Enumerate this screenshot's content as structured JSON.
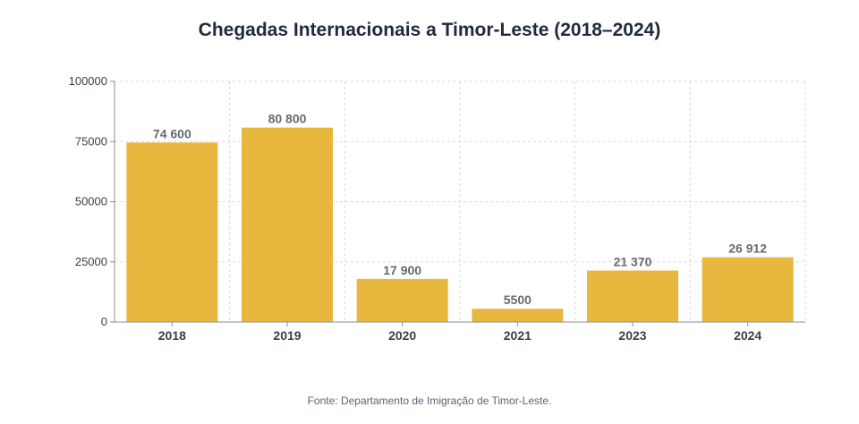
{
  "header": {
    "title": "Chegadas Internacionais a Timor-Leste (2018–2024)"
  },
  "footer": {
    "source": "Fonte: Departamento de Imigração de Timor-Leste."
  },
  "colors": {
    "bar": "#e8b83e",
    "grid": "#d6d9de",
    "axis": "#8a8f96"
  },
  "chart_data": {
    "type": "bar",
    "title": "Chegadas Internacionais a Timor-Leste (2018–2024)",
    "categories": [
      "2018",
      "2019",
      "2020",
      "2021",
      "2023",
      "2024"
    ],
    "values": [
      74600,
      80800,
      17900,
      5500,
      21370,
      26912
    ],
    "data_labels": [
      "74 600",
      "80 800",
      "17 900",
      "5500",
      "21 370",
      "26 912"
    ],
    "yticks": [
      0,
      25000,
      50000,
      75000,
      100000
    ],
    "ytick_labels": [
      "0",
      "25000",
      "50000",
      "75000",
      "100000"
    ],
    "ylim": [
      0,
      100000
    ],
    "xlabel": "",
    "ylabel": "",
    "grid": true,
    "legend": "none"
  }
}
